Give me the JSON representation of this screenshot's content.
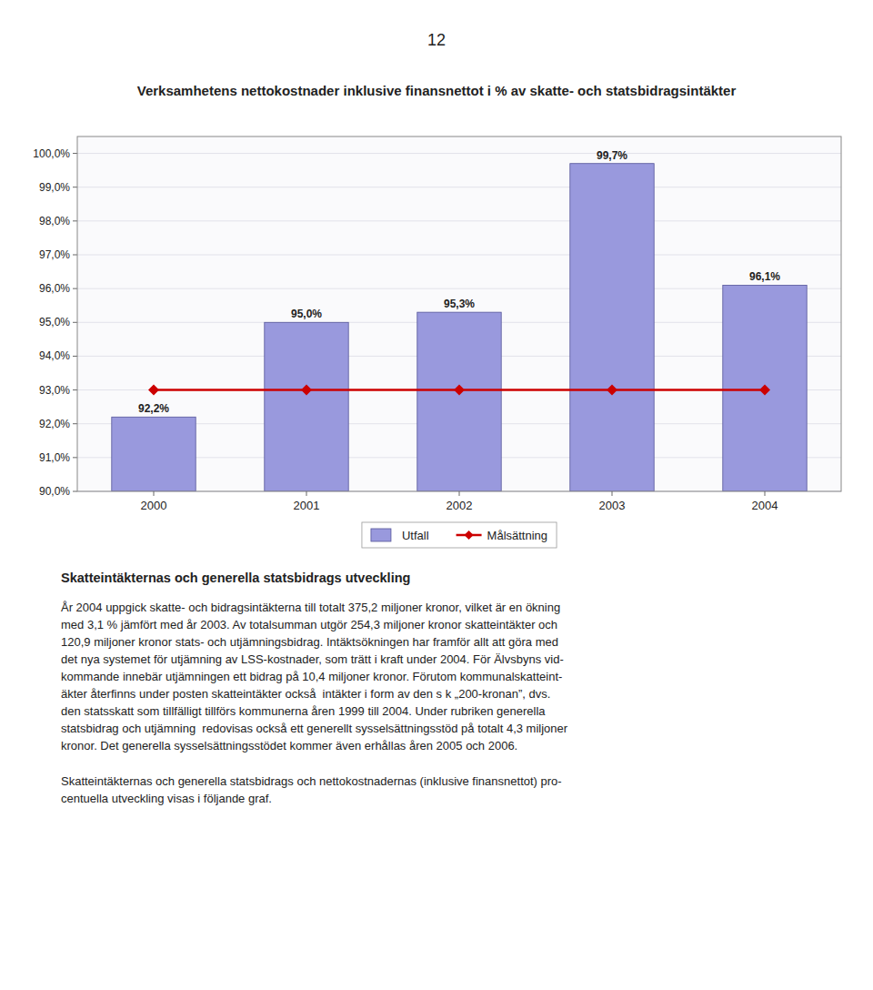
{
  "page_number": "12",
  "section_title": "Skatteintäkternas och generella statsbidrags utveckling",
  "paragraphs": [
    [
      "År 2004 uppgick skatte- och bidragsintäkterna till totalt 375,2 miljoner kronor, vilket är en ökning",
      "med 3,1 % jämfört med år 2003. Av totalsumman utgör 254,3 miljoner kronor skatteintäkter och",
      "120,9 miljoner kronor stats- och utjämningsbidrag. Intäktsökningen har framför allt att göra med",
      "det nya systemet för utjämning av LSS-kostnader, som trätt i kraft under 2004. För Älvsbyns vid-",
      "kommande innebär utjämningen ett bidrag på 10,4 miljoner kronor. Förutom kommunalskatteint-",
      "äkter återfinns under posten skatteintäkter också  intäkter i form av den s k „200-kronan”, dvs.",
      "den statsskatt som tillfälligt tillförs kommunerna åren 1999 till 2004. Under rubriken generella",
      "statsbidrag och utjämning  redovisas också ett generellt sysselsättningsstöd på totalt 4,3 miljoner",
      "kronor. Det generella sysselsättningsstödet kommer även erhållas åren 2005 och 2006."
    ],
    [
      "Skatteintäkternas och generella statsbidrags och nettokostnadernas (inklusive finansnettot) pro-",
      "centuella utveckling visas i följande graf."
    ]
  ],
  "chart_data": {
    "type": "bar",
    "title": "Verksamhetens nettokostnader inklusive finansnettot i % av skatte- och statsbidragsintäkter",
    "categories": [
      "2000",
      "2001",
      "2002",
      "2003",
      "2004"
    ],
    "series": [
      {
        "name": "Utfall",
        "type": "bar",
        "color": "#9999dd",
        "values": [
          92.2,
          95.0,
          95.3,
          99.7,
          96.1
        ],
        "value_labels": [
          "92,2%",
          "95,0%",
          "95,3%",
          "99,7%",
          "96,1%"
        ]
      },
      {
        "name": "Målsättning",
        "type": "line",
        "color": "#cc0000",
        "marker": "diamond",
        "values": [
          93.0,
          93.0,
          93.0,
          93.0,
          93.0
        ]
      }
    ],
    "ylim": [
      90.0,
      100.5
    ],
    "yticks": [
      {
        "value": 90.0,
        "label": "90,0%"
      },
      {
        "value": 91.0,
        "label": "91,0%"
      },
      {
        "value": 92.0,
        "label": "92,0%"
      },
      {
        "value": 93.0,
        "label": "93,0%"
      },
      {
        "value": 94.0,
        "label": "94,0%"
      },
      {
        "value": 95.0,
        "label": "95,0%"
      },
      {
        "value": 96.0,
        "label": "96,0%"
      },
      {
        "value": 97.0,
        "label": "97,0%"
      },
      {
        "value": 98.0,
        "label": "98,0%"
      },
      {
        "value": 99.0,
        "label": "99,0%"
      },
      {
        "value": 100.0,
        "label": "100,0%"
      }
    ],
    "grid": true,
    "data_labels": true,
    "legend": "bottom"
  }
}
